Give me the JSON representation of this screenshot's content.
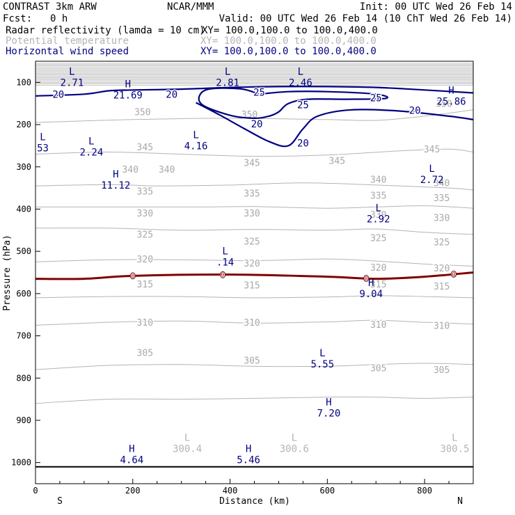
{
  "header": {
    "title": "CONTRAST  3km ARW",
    "source": "NCAR/MMM",
    "init": "Init: 00 UTC Wed 26 Feb 14",
    "fcst_label": "Fcst:",
    "fcst_value": "0 h",
    "valid": "Valid: 00 UTC Wed 26 Feb 14 (10 ChT Wed 26 Feb 14)",
    "fields": [
      {
        "name": "Radar reflectivity (lamda = 10 cm)",
        "xy": "XY= 100.0,100.0 to 100.0,400.0",
        "color": "#000000"
      },
      {
        "name": "Potential temperature",
        "xy": "XY= 100.0,100.0 to 100.0,400.0",
        "color": "#b4b4b4"
      },
      {
        "name": "Horizontal wind speed",
        "xy": "XY= 100.0,100.0 to 100.0,400.0",
        "color": "#000080"
      }
    ]
  },
  "chart_data": {
    "type": "cross-section-contour",
    "xlabel": "Distance (km)",
    "ylabel": "Pressure (hPa)",
    "xlim": [
      0,
      900
    ],
    "ylim": [
      1050,
      50
    ],
    "x_ticks": [
      "0",
      "200",
      "400",
      "600",
      "800"
    ],
    "y_ticks": [
      "100",
      "200",
      "300",
      "400",
      "500",
      "600",
      "700",
      "800",
      "900",
      "1000"
    ],
    "endpoints": {
      "left": "S",
      "right": "N"
    },
    "theta_contours": [
      {
        "value": 350,
        "points": [
          [
            0,
            195
          ],
          [
            200,
            188
          ],
          [
            400,
            185
          ],
          [
            600,
            188
          ],
          [
            700,
            190
          ],
          [
            800,
            180
          ],
          [
            900,
            165
          ]
        ],
        "labels": [
          [
            220,
            172
          ],
          [
            440,
            178
          ],
          [
            840,
            152
          ]
        ]
      },
      {
        "value": 345,
        "points": [
          [
            0,
            270
          ],
          [
            150,
            265
          ],
          [
            300,
            270
          ],
          [
            450,
            275
          ],
          [
            600,
            272
          ],
          [
            750,
            262
          ],
          [
            850,
            258
          ],
          [
            900,
            265
          ]
        ],
        "labels": [
          [
            225,
            255
          ],
          [
            445,
            292
          ],
          [
            620,
            287
          ],
          [
            815,
            260
          ]
        ]
      },
      {
        "value": 340,
        "points": [
          [
            0,
            345
          ],
          [
            150,
            342
          ],
          [
            250,
            345
          ],
          [
            400,
            343
          ],
          [
            550,
            338
          ],
          [
            700,
            343
          ],
          [
            850,
            350
          ],
          [
            900,
            355
          ]
        ],
        "labels": [
          [
            195,
            308
          ],
          [
            270,
            308
          ],
          [
            705,
            332
          ],
          [
            835,
            340
          ]
        ]
      },
      {
        "value": 335,
        "points": [
          [
            0,
            395
          ],
          [
            200,
            395
          ],
          [
            350,
            395
          ],
          [
            450,
            394
          ],
          [
            600,
            398
          ],
          [
            700,
            395
          ],
          [
            800,
            392
          ],
          [
            900,
            398
          ]
        ],
        "labels": [
          [
            225,
            360
          ],
          [
            445,
            365
          ],
          [
            705,
            370
          ],
          [
            835,
            375
          ]
        ]
      },
      {
        "value": 330,
        "points": [
          [
            0,
            445
          ],
          [
            150,
            445
          ],
          [
            300,
            450
          ],
          [
            450,
            448
          ],
          [
            600,
            450
          ],
          [
            700,
            447
          ],
          [
            800,
            455
          ],
          [
            900,
            460
          ]
        ],
        "labels": [
          [
            225,
            412
          ],
          [
            445,
            412
          ],
          [
            705,
            415
          ],
          [
            835,
            422
          ]
        ]
      },
      {
        "value": 325,
        "points": [
          [
            0,
            525
          ],
          [
            150,
            520
          ],
          [
            300,
            520
          ],
          [
            450,
            522
          ],
          [
            600,
            518
          ],
          [
            700,
            523
          ],
          [
            800,
            530
          ],
          [
            900,
            535
          ]
        ],
        "labels": [
          [
            225,
            462
          ],
          [
            445,
            478
          ],
          [
            705,
            470
          ],
          [
            835,
            480
          ]
        ]
      },
      {
        "value": 320,
        "points": [
          [
            0,
            610
          ],
          [
            150,
            607
          ],
          [
            300,
            607
          ],
          [
            450,
            610
          ],
          [
            600,
            608
          ],
          [
            700,
            605
          ],
          [
            800,
            607
          ],
          [
            900,
            610
          ]
        ],
        "labels": [
          [
            225,
            520
          ],
          [
            445,
            530
          ],
          [
            705,
            540
          ],
          [
            835,
            542
          ]
        ]
      },
      {
        "value": 315,
        "points": [
          [
            0,
            675
          ],
          [
            150,
            668
          ],
          [
            300,
            665
          ],
          [
            450,
            670
          ],
          [
            600,
            667
          ],
          [
            700,
            663
          ],
          [
            800,
            668
          ],
          [
            900,
            672
          ]
        ],
        "labels": [
          [
            225,
            580
          ],
          [
            445,
            582
          ],
          [
            705,
            580
          ],
          [
            835,
            585
          ]
        ]
      },
      {
        "value": 310,
        "points": [
          [
            0,
            780
          ],
          [
            150,
            770
          ],
          [
            300,
            768
          ],
          [
            450,
            772
          ],
          [
            600,
            772
          ],
          [
            700,
            768
          ],
          [
            800,
            765
          ],
          [
            900,
            768
          ]
        ],
        "labels": [
          [
            225,
            670
          ],
          [
            445,
            670
          ],
          [
            705,
            675
          ],
          [
            835,
            678
          ]
        ]
      },
      {
        "value": 305,
        "points": [
          [
            0,
            860
          ],
          [
            150,
            850
          ],
          [
            300,
            850
          ],
          [
            450,
            848
          ],
          [
            600,
            845
          ],
          [
            700,
            845
          ],
          [
            800,
            848
          ],
          [
            900,
            845
          ]
        ],
        "labels": [
          [
            225,
            742
          ],
          [
            445,
            760
          ],
          [
            705,
            778
          ],
          [
            835,
            782
          ]
        ]
      }
    ],
    "wind_contours": [
      {
        "value": 20,
        "points": [
          [
            0,
            132
          ],
          [
            100,
            128
          ],
          [
            150,
            120
          ],
          [
            200,
            118
          ],
          [
            300,
            116
          ],
          [
            400,
            112
          ],
          [
            500,
            110
          ],
          [
            600,
            110
          ],
          [
            700,
            112
          ],
          [
            800,
            118
          ],
          [
            900,
            125
          ]
        ],
        "labels": [
          [
            47,
            130
          ],
          [
            280,
            130
          ]
        ]
      },
      {
        "value": 20,
        "points": [
          [
            330,
            148
          ],
          [
            380,
            178
          ],
          [
            430,
            210
          ],
          [
            480,
            240
          ],
          [
            520,
            250
          ],
          [
            550,
            210
          ],
          [
            580,
            180
          ],
          [
            650,
            165
          ],
          [
            750,
            168
          ],
          [
            850,
            180
          ],
          [
            900,
            188
          ]
        ],
        "labels": [
          [
            455,
            200
          ],
          [
            550,
            245
          ],
          [
            780,
            168
          ]
        ]
      },
      {
        "value": 25,
        "points": [
          [
            460,
            128
          ],
          [
            520,
            122
          ],
          [
            600,
            122
          ],
          [
            700,
            128
          ],
          [
            720,
            138
          ],
          [
            640,
            140
          ],
          [
            560,
            140
          ],
          [
            520,
            150
          ],
          [
            500,
            170
          ],
          [
            480,
            180
          ],
          [
            450,
            185
          ],
          [
            400,
            178
          ],
          [
            340,
            150
          ],
          [
            350,
            118
          ],
          [
            420,
            115
          ],
          [
            460,
            128
          ]
        ],
        "labels": [
          [
            460,
            125
          ],
          [
            550,
            155
          ],
          [
            700,
            138
          ]
        ]
      }
    ],
    "melting_level": {
      "value": 0,
      "points": [
        [
          0,
          565
        ],
        [
          100,
          565
        ],
        [
          200,
          558
        ],
        [
          400,
          555
        ],
        [
          600,
          560
        ],
        [
          700,
          565
        ],
        [
          800,
          560
        ],
        [
          900,
          550
        ]
      ],
      "markers": [
        200,
        385,
        680,
        860
      ]
    },
    "ground_level": 1010,
    "extrema": [
      {
        "type": "L",
        "value": "2.71",
        "x": 75,
        "p": 95
      },
      {
        "type": "H",
        "value": "21.69",
        "x": 190,
        "p": 125
      },
      {
        "type": "L",
        "value": "2.81",
        "x": 395,
        "p": 95
      },
      {
        "type": "L",
        "value": "2.46",
        "x": 545,
        "p": 95
      },
      {
        "type": "H",
        "value": "25.86",
        "x": 855,
        "p": 140
      },
      {
        "type": "L",
        "value": "53",
        "x": 15,
        "p": 250
      },
      {
        "type": "L",
        "value": "2.24",
        "x": 115,
        "p": 260
      },
      {
        "type": "L",
        "value": "4.16",
        "x": 330,
        "p": 245
      },
      {
        "type": "H",
        "value": "11.12",
        "x": 165,
        "p": 338
      },
      {
        "type": "L",
        "value": "2.72",
        "x": 815,
        "p": 325
      },
      {
        "type": "L",
        "value": "2.92",
        "x": 705,
        "p": 418
      },
      {
        "type": "L",
        "value": ".14",
        "x": 390,
        "p": 520
      },
      {
        "type": "H",
        "value": "9.04",
        "x": 690,
        "p": 595
      },
      {
        "type": "L",
        "value": "5.55",
        "x": 590,
        "p": 762
      },
      {
        "type": "H",
        "value": "7.20",
        "x": 603,
        "p": 878
      },
      {
        "type": "L",
        "value": "300.4",
        "x": 312,
        "p": 962
      },
      {
        "type": "L",
        "value": "300.6",
        "x": 532,
        "p": 962
      },
      {
        "type": "H",
        "value": "4.64",
        "x": 198,
        "p": 988
      },
      {
        "type": "H",
        "value": "5.46",
        "x": 438,
        "p": 988
      },
      {
        "type": "L",
        "value": "300.5",
        "x": 862,
        "p": 962
      }
    ]
  },
  "colors": {
    "theta": "#b4b4b4",
    "wind": "#000080",
    "melting": "#800000",
    "axis": "#000000",
    "extrema_default": "#000080",
    "extrema_theta": "#b4b4b4"
  }
}
